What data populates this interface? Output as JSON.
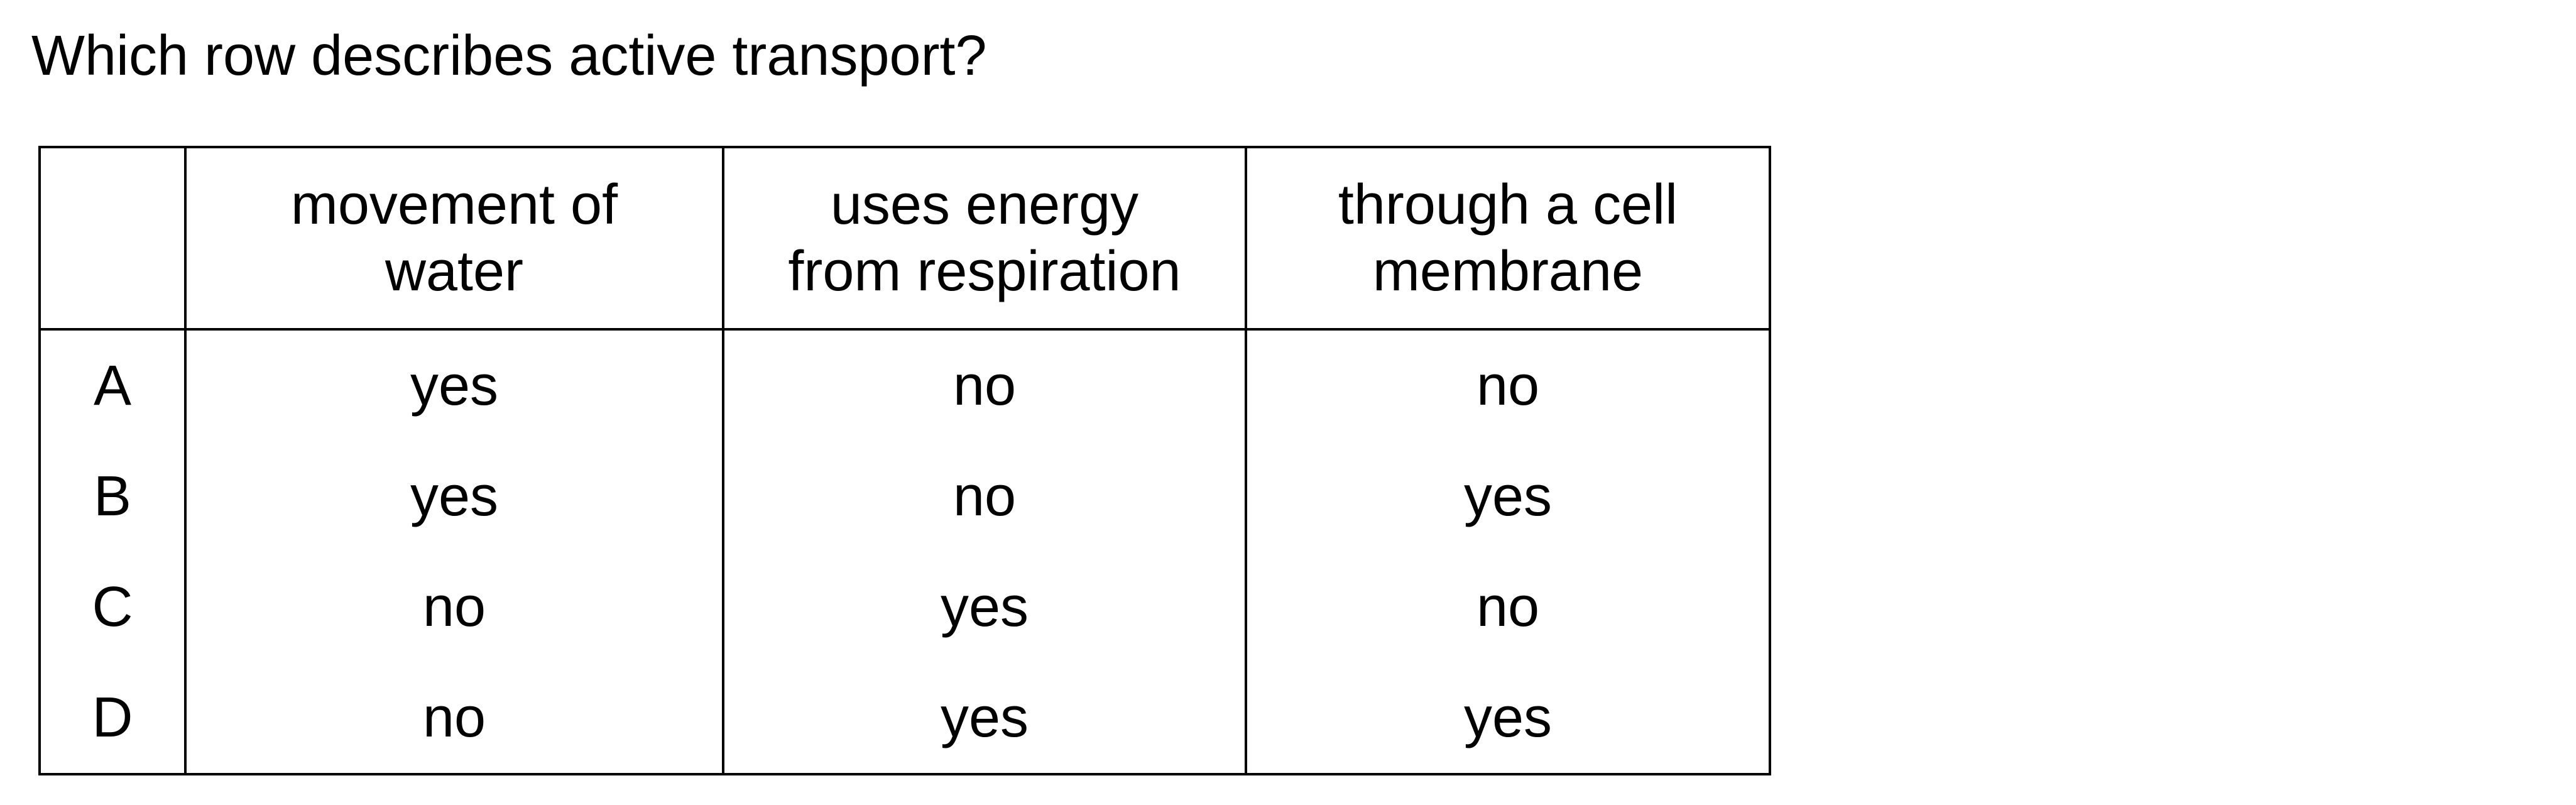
{
  "question": "Which row describes active transport?",
  "table": {
    "headers": [
      "",
      "movement of\nwater",
      "uses energy\nfrom respiration",
      "through a cell\nmembrane"
    ],
    "rows": [
      {
        "option": "A",
        "cells": [
          "yes",
          "no",
          "no"
        ]
      },
      {
        "option": "B",
        "cells": [
          "yes",
          "no",
          "yes"
        ]
      },
      {
        "option": "C",
        "cells": [
          "no",
          "yes",
          "no"
        ]
      },
      {
        "option": "D",
        "cells": [
          "no",
          "yes",
          "yes"
        ]
      }
    ]
  }
}
